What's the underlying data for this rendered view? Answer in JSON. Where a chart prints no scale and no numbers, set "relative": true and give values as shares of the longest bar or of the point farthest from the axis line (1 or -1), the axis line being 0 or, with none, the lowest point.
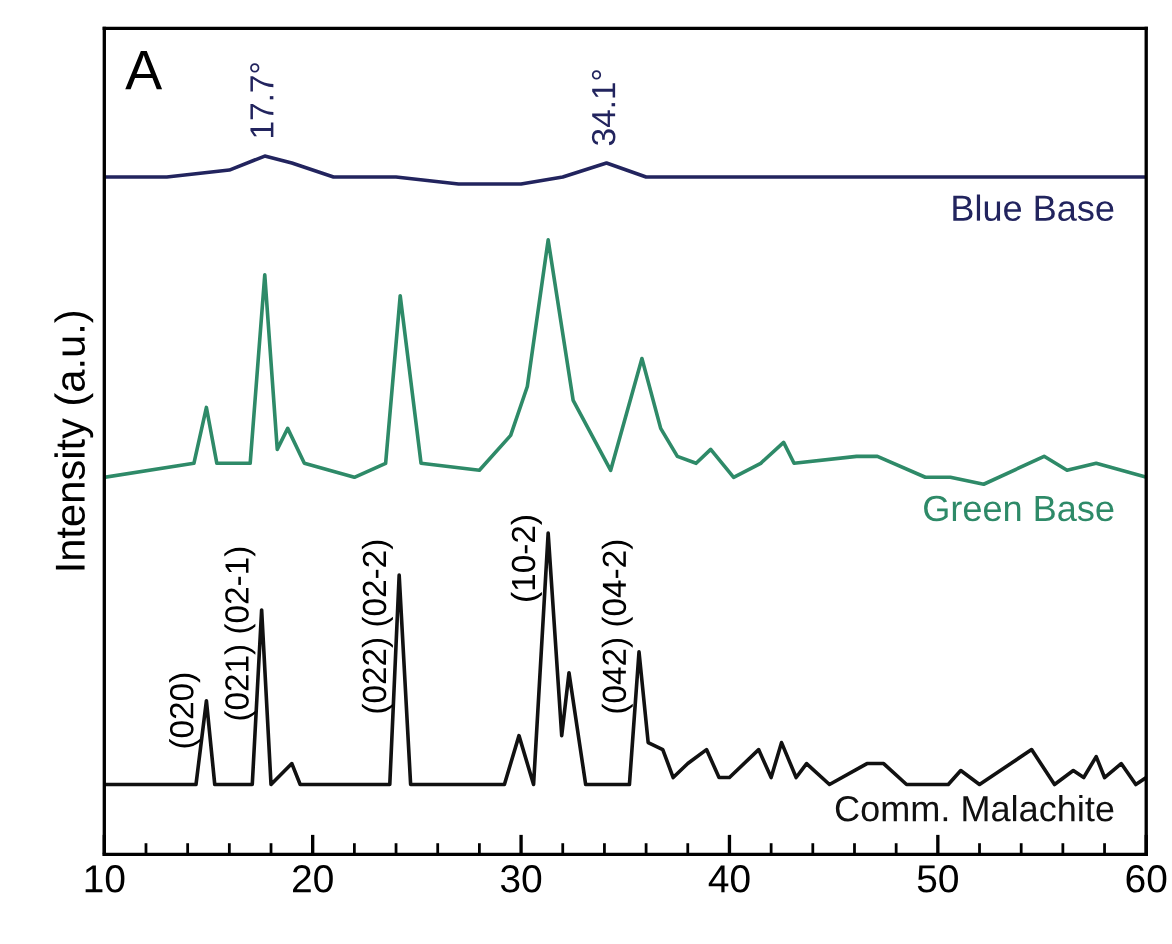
{
  "chart_data": {
    "type": "line",
    "relative": true,
    "ylabel": "Intensity (a.u.)",
    "xlim": [
      10,
      60
    ],
    "xticks": [
      10,
      {
        "value": 12,
        "label": null
      },
      {
        "value": 14,
        "label": null
      },
      {
        "value": 16,
        "label": null
      },
      {
        "value": 18,
        "label": null
      },
      20,
      {
        "value": 22,
        "label": null
      },
      {
        "value": 24,
        "label": null
      },
      {
        "value": 26,
        "label": null
      },
      {
        "value": 28,
        "label": null
      },
      30,
      {
        "value": 32,
        "label": null
      },
      {
        "value": 34,
        "label": null
      },
      {
        "value": 36,
        "label": null
      },
      {
        "value": 38,
        "label": null
      },
      40,
      {
        "value": 42,
        "label": null
      },
      {
        "value": 44,
        "label": null
      },
      {
        "value": 46,
        "label": null
      },
      {
        "value": 48,
        "label": null
      },
      50,
      {
        "value": 52,
        "label": null
      },
      {
        "value": 54,
        "label": null
      },
      {
        "value": 56,
        "label": null
      },
      {
        "value": 58,
        "label": null
      },
      60
    ],
    "grid": false,
    "legend": false,
    "series": [
      {
        "name": "Blue Base",
        "color": "#22245e",
        "x": [
          10,
          13,
          16,
          17.7,
          19,
          21,
          24,
          27,
          30,
          32,
          34.1,
          36,
          40,
          45,
          50,
          55,
          60
        ],
        "values": [
          0.97,
          0.97,
          0.98,
          1.0,
          0.99,
          0.97,
          0.97,
          0.96,
          0.96,
          0.97,
          0.99,
          0.97,
          0.97,
          0.97,
          0.97,
          0.97,
          0.97
        ]
      },
      {
        "name": "Green Base",
        "color": "#2e8a68",
        "x": [
          10,
          14.3,
          14.9,
          15.4,
          17.0,
          17.7,
          18.3,
          18.8,
          19.6,
          22.0,
          23.5,
          24.2,
          25.2,
          28.0,
          29.5,
          30.3,
          31.3,
          32.5,
          34.3,
          35.8,
          36.7,
          37.5,
          38.4,
          39.1,
          40.2,
          41.5,
          42.6,
          43.1,
          46.1,
          47.1,
          49.4,
          50.6,
          52.2,
          55.1,
          56.2,
          57.6,
          60
        ],
        "values": [
          0.54,
          0.56,
          0.64,
          0.56,
          0.56,
          0.83,
          0.58,
          0.61,
          0.56,
          0.54,
          0.56,
          0.8,
          0.56,
          0.55,
          0.6,
          0.67,
          0.88,
          0.65,
          0.55,
          0.71,
          0.61,
          0.57,
          0.56,
          0.58,
          0.54,
          0.56,
          0.59,
          0.56,
          0.57,
          0.57,
          0.54,
          0.54,
          0.53,
          0.57,
          0.55,
          0.56,
          0.54
        ]
      },
      {
        "name": "Comm. Malachite",
        "color": "#111111",
        "x": [
          10,
          14.4,
          14.9,
          15.3,
          17.1,
          17.55,
          18.0,
          19.0,
          19.4,
          23.7,
          24.15,
          24.7,
          29.2,
          29.9,
          30.6,
          31.3,
          31.95,
          32.3,
          33.1,
          35.2,
          35.66,
          36.1,
          36.8,
          37.3,
          38.0,
          38.9,
          39.5,
          40.0,
          41.4,
          42.0,
          42.5,
          43.2,
          43.7,
          44.8,
          46.6,
          47.4,
          48.5,
          50.5,
          51.1,
          52,
          54.5,
          55.6,
          56.5,
          57.0,
          57.6,
          58.0,
          58.8,
          59.5,
          60
        ],
        "values": [
          0.1,
          0.1,
          0.22,
          0.1,
          0.1,
          0.35,
          0.1,
          0.13,
          0.1,
          0.1,
          0.4,
          0.1,
          0.1,
          0.17,
          0.1,
          0.46,
          0.17,
          0.26,
          0.1,
          0.1,
          0.29,
          0.16,
          0.15,
          0.11,
          0.13,
          0.15,
          0.11,
          0.11,
          0.15,
          0.11,
          0.16,
          0.11,
          0.13,
          0.1,
          0.13,
          0.13,
          0.1,
          0.1,
          0.12,
          0.1,
          0.15,
          0.1,
          0.12,
          0.11,
          0.14,
          0.11,
          0.13,
          0.1,
          0.11
        ]
      }
    ],
    "annotations": [
      "A",
      {
        "text": "17.7°",
        "x": 17.7,
        "y": 1.0
      },
      {
        "text": "34.1°",
        "x": 34.1,
        "y": 0.99
      },
      {
        "text": "(020)",
        "x": 14.9,
        "y": 0.15
      },
      {
        "text": "(021) (02-1)",
        "x": 17.55,
        "y": 0.19
      },
      {
        "text": "(022) (02-2)",
        "x": 24.15,
        "y": 0.2
      },
      {
        "text": "(10-2)",
        "x": 31.3,
        "y": 0.36
      },
      {
        "text": "(042) (04-2)",
        "x": 35.66,
        "y": 0.2
      }
    ]
  }
}
